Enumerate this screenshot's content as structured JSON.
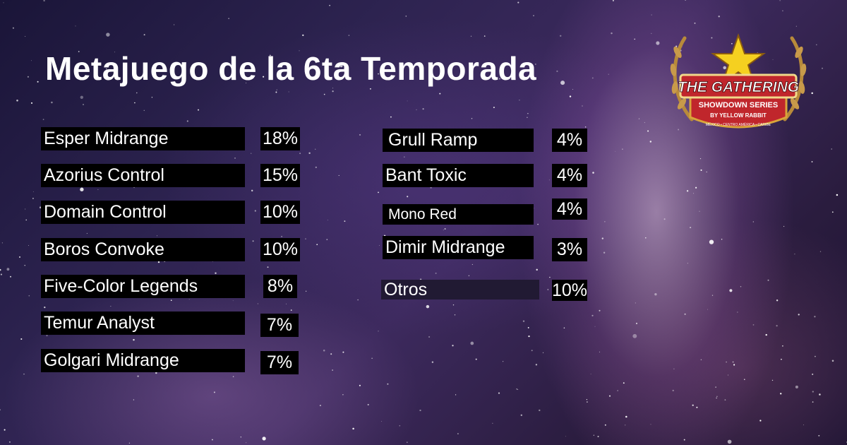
{
  "title": "Metajuego de la 6ta Temporada",
  "left_list": [
    {
      "name": "Esper Midrange",
      "pct": "18%"
    },
    {
      "name": "Azorius Control",
      "pct": "15%"
    },
    {
      "name": "Domain Control",
      "pct": "10%"
    },
    {
      "name": "Boros Convoke",
      "pct": "10%"
    },
    {
      "name": "Five-Color Legends",
      "pct": "8%"
    },
    {
      "name": "Temur Analyst",
      "pct": "7%"
    },
    {
      "name": "Golgari Midrange",
      "pct": "7%"
    }
  ],
  "right_list": [
    {
      "name": "Grull Ramp",
      "pct": "4%"
    },
    {
      "name": "Bant Toxic",
      "pct": "4%"
    },
    {
      "name": "Mono Red",
      "pct": "4%"
    },
    {
      "name": "Dimir Midrange",
      "pct": "3%"
    },
    {
      "name": "Otros",
      "pct": "10%"
    }
  ],
  "logo": {
    "line1": "THE GATHERING",
    "line2": "SHOWDOWN SERIES",
    "line3": "BY YELLOW RABBIT",
    "line4": "MÉXICO • CENTRO AMÉRICA • CARIBE",
    "icon": "star-laurel-emblem",
    "colors": {
      "red": "#c0262c",
      "gold": "#d9a53a",
      "star": "#f5d020"
    }
  }
}
